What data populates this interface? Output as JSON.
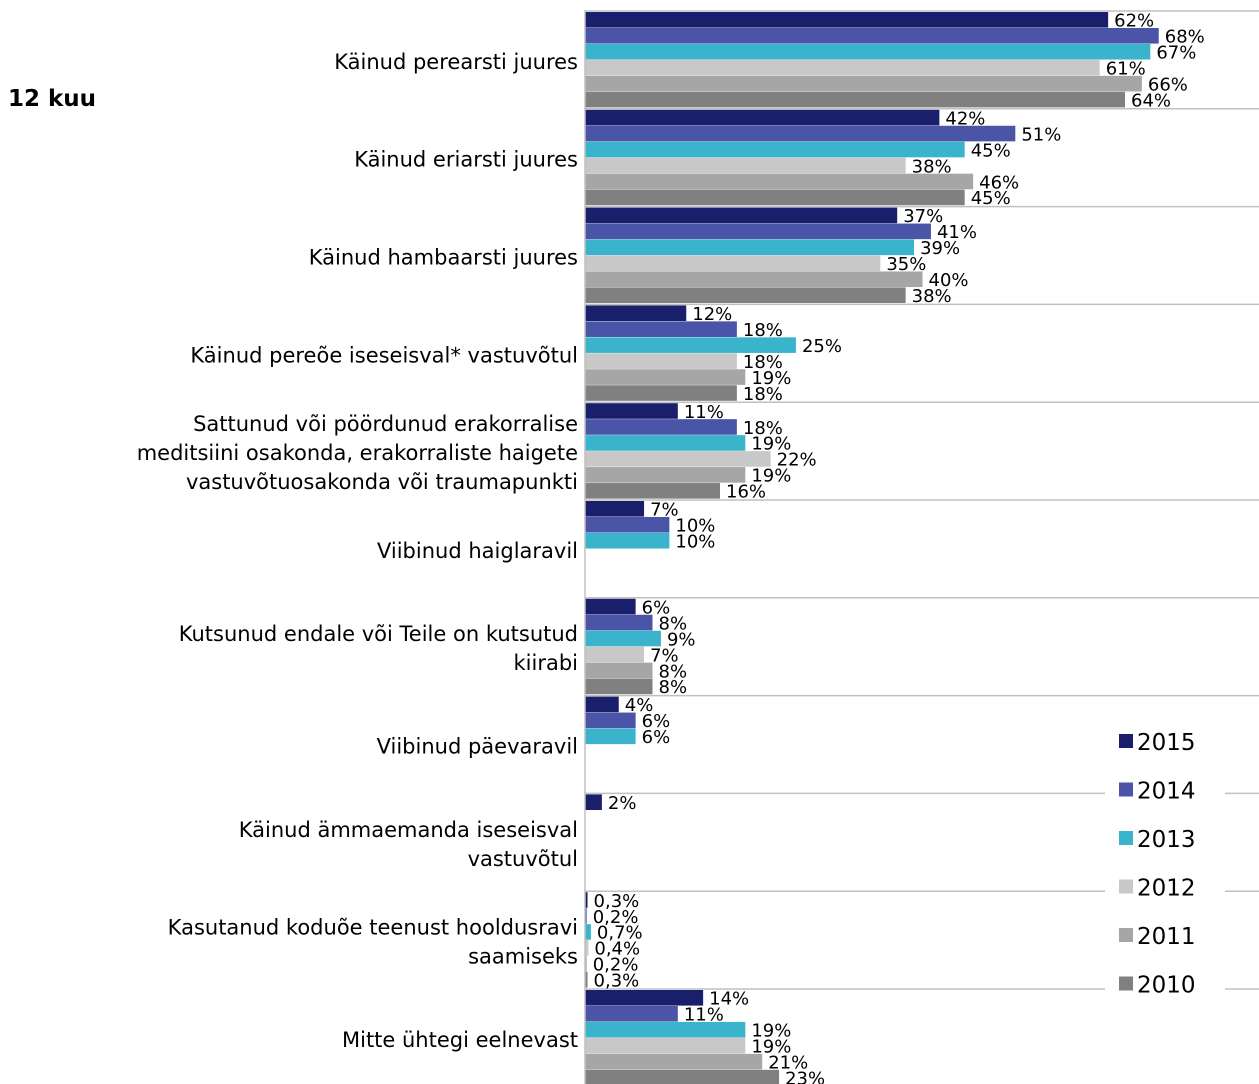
{
  "chart_data": {
    "type": "hbar",
    "subtitle": "12 kuu",
    "categories": [
      "Käinud perearsti juures",
      "Käinud eriarsti juures",
      "Käinud hambaarsti juures",
      "Käinud pereõe iseseisval* vastuvõtul",
      "Sattunud või pöördunud erakorralise\nmeditsiini osakonda, erakorraliste haigete\nvastuvõtuosakonda või traumapunkti",
      "Viibinud haiglaravil",
      "Kutsunud endale või Teile on kutsutud\nkiirabi",
      "Viibinud päevaravil",
      "Käinud ämmaemanda iseseisval\nvastuvõtul",
      "Kasutanud koduõe teenust hooldusravi\nsaamiseks",
      "Mitte ühtegi eelnevast"
    ],
    "series": [
      {
        "name": "2015",
        "color": "#1a1f6b",
        "values": [
          62,
          42,
          37,
          12,
          11,
          7,
          6,
          4,
          2,
          0.3,
          14
        ],
        "value_labels": [
          "62%",
          "42%",
          "37%",
          "12%",
          "11%",
          "7%",
          "6%",
          "4%",
          "2%",
          "0,3%",
          "14%"
        ]
      },
      {
        "name": "2014",
        "color": "#4a55a8",
        "values": [
          68,
          51,
          41,
          18,
          18,
          10,
          8,
          6,
          null,
          0.2,
          11
        ],
        "value_labels": [
          "68%",
          "51%",
          "41%",
          "18%",
          "18%",
          "10%",
          "8%",
          "6%",
          null,
          "0,2%",
          "11%"
        ]
      },
      {
        "name": "2013",
        "color": "#3ab4cc",
        "values": [
          67,
          45,
          39,
          25,
          19,
          10,
          9,
          6,
          null,
          0.7,
          19
        ],
        "value_labels": [
          "67%",
          "45%",
          "39%",
          "25%",
          "19%",
          "10%",
          "9%",
          "6%",
          null,
          "0,7%",
          "19%"
        ]
      },
      {
        "name": "2012",
        "color": "#c8c8c8",
        "values": [
          61,
          38,
          35,
          18,
          22,
          null,
          7,
          null,
          null,
          0.4,
          19
        ],
        "value_labels": [
          "61%",
          "38%",
          "35%",
          "18%",
          "22%",
          null,
          "7%",
          null,
          null,
          "0,4%",
          "19%"
        ]
      },
      {
        "name": "2011",
        "color": "#a6a6a6",
        "values": [
          66,
          46,
          40,
          19,
          19,
          null,
          8,
          null,
          null,
          0.2,
          21
        ],
        "value_labels": [
          "66%",
          "46%",
          "40%",
          "19%",
          "19%",
          null,
          "8%",
          null,
          null,
          "0,2%",
          "21%"
        ]
      },
      {
        "name": "2010",
        "color": "#808080",
        "values": [
          64,
          45,
          38,
          18,
          16,
          null,
          8,
          null,
          null,
          0.3,
          23
        ],
        "value_labels": [
          "64%",
          "45%",
          "38%",
          "18%",
          "16%",
          null,
          "8%",
          null,
          null,
          "0,3%",
          "23%"
        ]
      }
    ],
    "xlim": [
      0,
      80
    ],
    "legend": "lower right"
  }
}
